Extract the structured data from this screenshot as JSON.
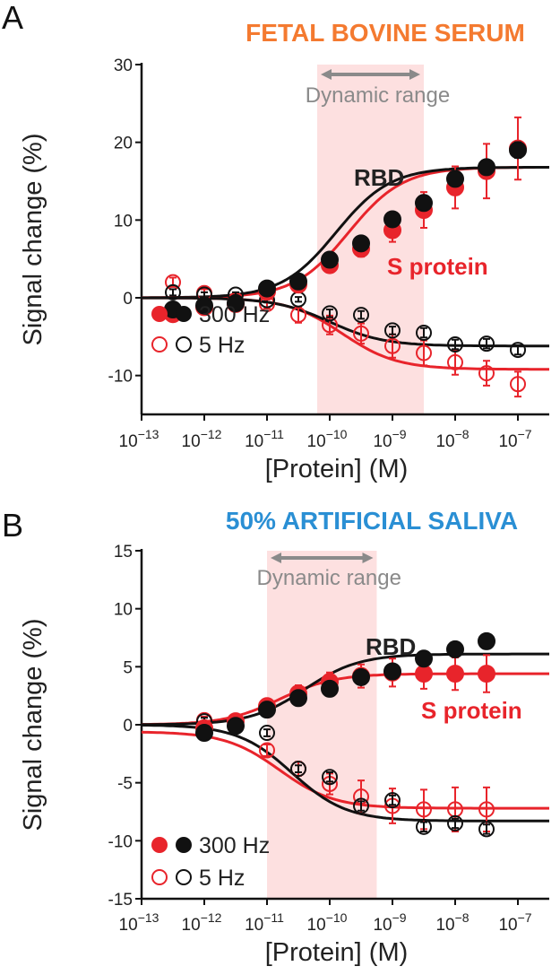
{
  "chart_data": [
    {
      "type": "scatter",
      "panel_label": "A",
      "title": "FETAL BOVINE SERUM",
      "title_color": "#f47a30",
      "xlabel": "[Protein] (M)",
      "ylabel": "Signal change (%)",
      "x_scale": "log",
      "xlim_log10": [
        -13,
        -6.5
      ],
      "x_tick_exponents": [
        "-13",
        "-12",
        "-11",
        "-10",
        "-9",
        "-8",
        "-7"
      ],
      "ylim": [
        -15,
        30
      ],
      "y_ticks": [
        30,
        20,
        10,
        0,
        -10
      ],
      "dynamic_range": {
        "label": "Dynamic range",
        "log10_range": [
          -10.2,
          -8.5
        ],
        "shade_color": "#fde0e0"
      },
      "annotations": {
        "rbd": "RBD",
        "s_protein": "S protein"
      },
      "legend": {
        "filled": "300 Hz",
        "open": "5 Hz",
        "position": "bottom-left"
      },
      "x_log10": [
        -12.5,
        -12,
        -11.5,
        -11,
        -10.5,
        -10,
        -9.5,
        -9,
        -8.5,
        -8,
        -7.5,
        -7
      ],
      "series": [
        {
          "protein": "S protein",
          "frequency": "300 Hz",
          "color": "#e8242b",
          "filled": true,
          "values": [
            -2.1,
            -1.2,
            -0.8,
            0.8,
            1.7,
            4.2,
            6.3,
            8.7,
            11.3,
            14.2,
            16.3,
            19.2
          ],
          "err": [
            0.5,
            0.5,
            0.5,
            0.5,
            0.6,
            0.8,
            1.0,
            1.5,
            2.3,
            2.7,
            3.5,
            4.0
          ],
          "fit": {
            "bottom": 0,
            "top": 16.8,
            "log_ec50": -9.7
          }
        },
        {
          "protein": "RBD",
          "frequency": "300 Hz",
          "color": "#111111",
          "filled": true,
          "values": [
            -1.5,
            -1.0,
            -0.7,
            1.2,
            2.1,
            4.9,
            7.0,
            10.1,
            12.2,
            15.3,
            16.8,
            19.0
          ],
          "err": [
            0.4,
            0.4,
            0.4,
            0.4,
            0.5,
            0.5,
            0.6,
            0.7,
            0.8,
            0.9,
            0.9,
            1.0
          ],
          "fit": {
            "bottom": 0,
            "top": 16.8,
            "log_ec50": -9.9
          }
        },
        {
          "protein": "S protein",
          "frequency": "5 Hz",
          "color": "#e8242b",
          "filled": false,
          "values": [
            2.0,
            0.6,
            -0.3,
            -0.8,
            -2.2,
            -3.5,
            -4.6,
            -6.2,
            -7.1,
            -8.3,
            -9.7,
            -11.1
          ],
          "err": [
            0.6,
            0.5,
            0.5,
            0.6,
            1.0,
            1.2,
            1.3,
            1.5,
            1.6,
            1.6,
            1.6,
            1.6
          ],
          "fit": {
            "bottom": -9.2,
            "top": 0,
            "log_ec50": -9.8
          }
        },
        {
          "protein": "RBD",
          "frequency": "5 Hz",
          "color": "#111111",
          "filled": false,
          "values": [
            0.7,
            0.4,
            0.4,
            -0.3,
            -0.2,
            -2.0,
            -2.2,
            -4.2,
            -4.5,
            -6.0,
            -5.9,
            -6.7
          ],
          "err": [
            0.4,
            0.3,
            0.3,
            0.3,
            0.3,
            0.5,
            0.5,
            0.5,
            0.6,
            0.6,
            0.6,
            0.6
          ],
          "fit": {
            "bottom": -6.2,
            "top": 0,
            "log_ec50": -10.0
          }
        }
      ]
    },
    {
      "type": "scatter",
      "panel_label": "B",
      "title": "50% ARTIFICIAL SALIVA",
      "title_color": "#2a8fd4",
      "xlabel": "[Protein] (M)",
      "ylabel": "Signal change (%)",
      "x_scale": "log",
      "xlim_log10": [
        -13,
        -6.5
      ],
      "x_tick_exponents": [
        "-13",
        "-12",
        "-11",
        "-10",
        "-9",
        "-8",
        "-7"
      ],
      "ylim": [
        -15,
        15
      ],
      "y_ticks": [
        15,
        10,
        5,
        0,
        -5,
        -10,
        -15
      ],
      "dynamic_range": {
        "label": "Dynamic range",
        "log10_range": [
          -11.0,
          -9.25
        ],
        "shade_color": "#fde0e0"
      },
      "annotations": {
        "rbd": "RBD",
        "s_protein": "S protein"
      },
      "legend": {
        "filled": "300 Hz",
        "open": "5 Hz",
        "position": "bottom-left"
      },
      "x_log10": [
        -12,
        -11.5,
        -11,
        -10.5,
        -10,
        -9.5,
        -9,
        -8.5,
        -8,
        -7.5
      ],
      "series": [
        {
          "protein": "S protein",
          "frequency": "300 Hz",
          "color": "#e8242b",
          "filled": true,
          "values": [
            -0.3,
            0.3,
            1.6,
            2.7,
            3.7,
            4.2,
            4.5,
            4.4,
            4.4,
            4.4
          ],
          "err": [
            0.3,
            0.3,
            0.6,
            0.7,
            0.8,
            1.0,
            1.2,
            1.3,
            1.4,
            1.6
          ],
          "fit": {
            "bottom": 0,
            "top": 4.4,
            "log_ec50": -10.8
          }
        },
        {
          "protein": "RBD",
          "frequency": "300 Hz",
          "color": "#111111",
          "filled": true,
          "values": [
            -0.7,
            -0.1,
            1.3,
            2.3,
            3.1,
            4.1,
            4.6,
            5.7,
            6.5,
            7.2
          ],
          "err": [
            0.3,
            0.3,
            0.4,
            0.4,
            0.5,
            0.5,
            0.5,
            0.5,
            0.5,
            0.6
          ],
          "fit": {
            "bottom": 0,
            "top": 6.1,
            "log_ec50": -10.4
          }
        },
        {
          "protein": "S protein",
          "frequency": "5 Hz",
          "color": "#e8242b",
          "filled": false,
          "values": [
            0.4,
            0.1,
            -2.2,
            -3.8,
            -5.1,
            -6.2,
            -7.0,
            -7.3,
            -7.3,
            -7.3
          ],
          "err": [
            0.3,
            0.3,
            0.5,
            0.6,
            0.9,
            1.4,
            1.5,
            1.7,
            1.9,
            1.9
          ],
          "fit": {
            "bottom": -7.2,
            "top": -0.6,
            "log_ec50": -10.8
          }
        },
        {
          "protein": "RBD",
          "frequency": "5 Hz",
          "color": "#111111",
          "filled": false,
          "values": [
            0.3,
            -0.05,
            -0.7,
            -3.8,
            -4.5,
            -7.0,
            -6.5,
            -8.8,
            -8.5,
            -9.0
          ],
          "err": [
            0.3,
            0.3,
            0.3,
            0.3,
            0.4,
            0.4,
            0.4,
            0.4,
            0.4,
            0.4
          ],
          "fit": {
            "bottom": -8.3,
            "top": 0,
            "log_ec50": -10.6
          }
        }
      ]
    }
  ]
}
